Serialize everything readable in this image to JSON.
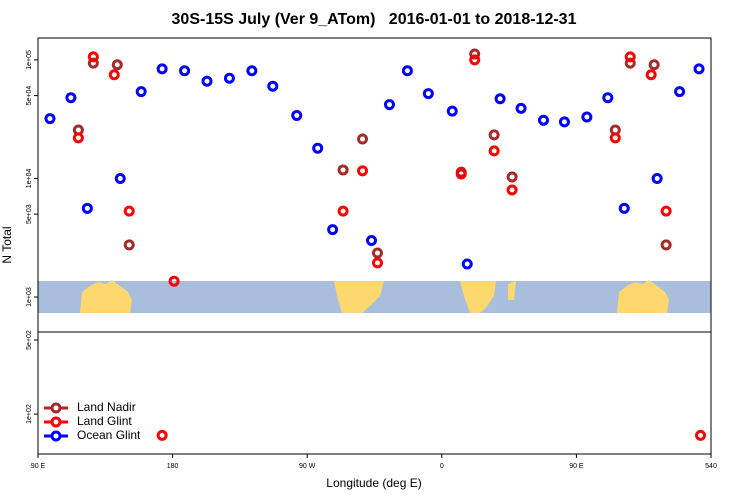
{
  "chart_data": [
    {
      "type": "scatter",
      "title": "30S-15S July (Ver 9_ATom)   2016-01-01 to 2018-12-31",
      "y_label": "N Total",
      "log_y": true,
      "xlim": [
        90,
        540
      ],
      "ylim": [
        507,
        153000
      ],
      "yticks": [
        {
          "value": 100000,
          "label": "1e+05"
        },
        {
          "value": 50000,
          "label": "5e+04"
        },
        {
          "value": 10000,
          "label": "1e+04"
        },
        {
          "value": 5000,
          "label": "5e+03"
        },
        {
          "value": 1000,
          "label": "1e+03"
        }
      ],
      "series": [
        {
          "name": "Land Nadir",
          "color": "#a52a2a",
          "x": [
            117,
            127,
            143,
            151,
            294,
            307,
            317,
            373,
            382,
            395,
            407,
            476,
            486,
            502,
            510
          ],
          "values": [
            25600,
            94000,
            91000,
            2750,
            11800,
            21500,
            2350,
            11300,
            112000,
            23300,
            10300,
            25600,
            94000,
            91000,
            2750
          ]
        },
        {
          "name": "Land Glint",
          "color": "#ff0000",
          "x": [
            117,
            127,
            141,
            151,
            181,
            294,
            307,
            317,
            373,
            382,
            395,
            407,
            476,
            486,
            500,
            510
          ],
          "values": [
            22000,
            106000,
            75000,
            5300,
            1360,
            5300,
            11600,
            1940,
            10900,
            100000,
            17100,
            8000,
            22000,
            106000,
            75000,
            5300
          ]
        },
        {
          "name": "Ocean Glint",
          "color": "#0000ff",
          "x": [
            98,
            112,
            123,
            145,
            159,
            173,
            188,
            203,
            218,
            233,
            247,
            263,
            277,
            287,
            313,
            325,
            337,
            351,
            367,
            377,
            399,
            413,
            428,
            442,
            457,
            471,
            482,
            504,
            519,
            532
          ],
          "values": [
            32000,
            48000,
            5600,
            10000,
            54000,
            84000,
            81000,
            66000,
            70000,
            81000,
            60000,
            34000,
            18000,
            3700,
            3000,
            42000,
            81000,
            52000,
            37000,
            1900,
            47000,
            39000,
            31000,
            30000,
            33000,
            48000,
            5600,
            10000,
            54000,
            84000
          ]
        }
      ]
    },
    {
      "type": "scatter",
      "x_label": "Longitude (deg E)",
      "log_y": true,
      "legend": "lower left",
      "xlim": [
        90,
        540
      ],
      "ylim": [
        42,
        595
      ],
      "xticks": [
        {
          "value": 90,
          "label": "90 E"
        },
        180,
        {
          "value": 270,
          "label": "90 W"
        },
        {
          "value": 360,
          "label": "0"
        },
        {
          "value": 450,
          "label": "90 E"
        },
        540
      ],
      "yticks": [
        {
          "value": 500,
          "label": "5e+02"
        },
        {
          "value": 100,
          "label": "1e+02"
        }
      ],
      "series": [
        {
          "name": "Land Nadir",
          "color": "#a52a2a",
          "x": [],
          "values": []
        },
        {
          "name": "Land Glint",
          "color": "#ff0000",
          "x": [
            173,
            533
          ],
          "values": [
            63,
            63
          ]
        },
        {
          "name": "Ocean Glint",
          "color": "#0000ff",
          "x": [],
          "values": []
        }
      ]
    }
  ]
}
